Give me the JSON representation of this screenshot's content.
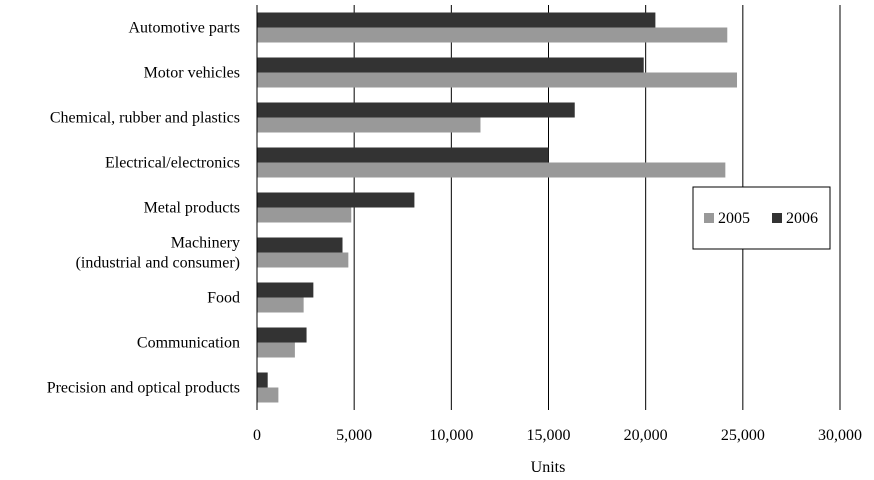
{
  "chart_data": {
    "type": "bar",
    "orientation": "horizontal",
    "categories": [
      [
        "Automotive parts"
      ],
      [
        "Motor vehicles"
      ],
      [
        "Chemical, rubber and plastics"
      ],
      [
        "Electrical/electronics"
      ],
      [
        "Metal products"
      ],
      [
        "Machinery",
        "(industrial and consumer)"
      ],
      [
        "Food"
      ],
      [
        "Communication"
      ],
      [
        "Precision and optical products"
      ]
    ],
    "series": [
      {
        "name": "2006",
        "color": "#333333",
        "values": [
          20500,
          19900,
          16350,
          15000,
          8100,
          4400,
          2900,
          2550,
          550
        ]
      },
      {
        "name": "2005",
        "color": "#999999",
        "values": [
          24200,
          24700,
          11500,
          24100,
          4850,
          4700,
          2400,
          1950,
          1100
        ]
      }
    ],
    "x_axis": {
      "range": [
        0,
        30000
      ],
      "ticks": [
        0,
        5000,
        10000,
        15000,
        20000,
        25000,
        30000
      ],
      "tick_labels": [
        "0",
        "5,000",
        "10,000",
        "15,000",
        "20,000",
        "25,000",
        "30,000"
      ]
    },
    "xlabel": "Units",
    "grid": "vertical",
    "legend": {
      "placement": "right",
      "entries": [
        {
          "label": "2005",
          "color": "#999999"
        },
        {
          "label": "2006",
          "color": "#333333"
        }
      ]
    }
  }
}
